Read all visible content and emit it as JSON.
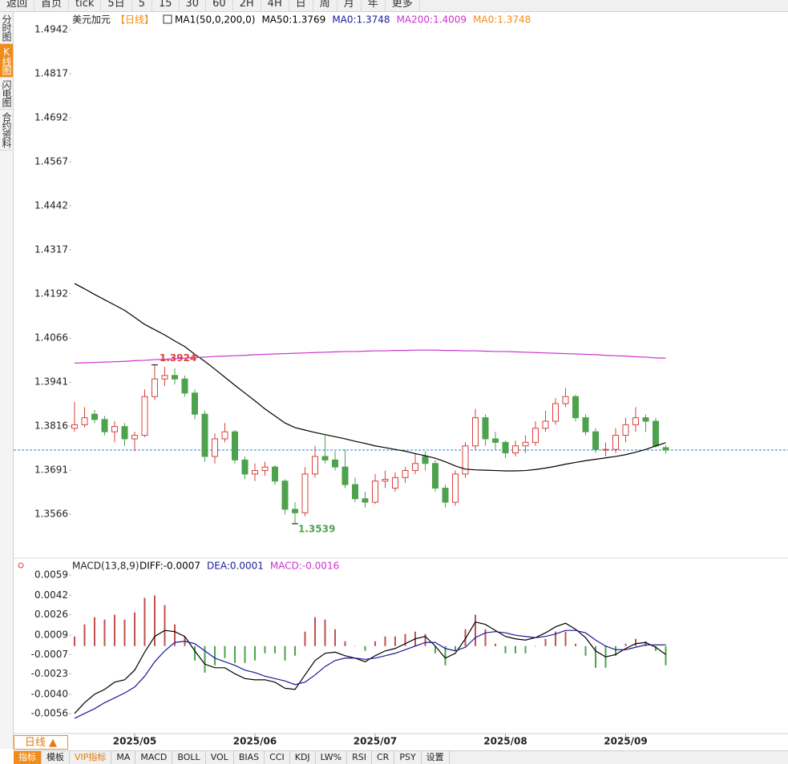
{
  "toolbar": [
    "返回",
    "首页",
    "tick",
    "5日",
    "5",
    "15",
    "30",
    "60",
    "2H",
    "4H",
    "日",
    "周",
    "月",
    "年",
    "更多"
  ],
  "sidebar": [
    "分时图",
    "K线图",
    "闪电图",
    "合约资料"
  ],
  "chart_data": {
    "type": "candlestick",
    "title": "美元加元",
    "period": "【日线】",
    "legend": [
      {
        "text": "MA1(50,0,200,0)",
        "color": "#000000"
      },
      {
        "text": "MA50:1.3769",
        "color": "#000000"
      },
      {
        "text": "MA0:1.3748",
        "color": "#1a1a9a"
      },
      {
        "text": "MA200:1.4009",
        "color": "#cc33cc"
      },
      {
        "text": "MA0:1.3748",
        "color": "#f08c1a"
      }
    ],
    "up_color": "#d9413c",
    "down_color": "#4ea24e",
    "categories": [
      null,
      null,
      null,
      null,
      null,
      null,
      "2025/05",
      null,
      null,
      null,
      null,
      null,
      null,
      null,
      null,
      null,
      null,
      null,
      "2025/06",
      null,
      null,
      null,
      null,
      null,
      null,
      null,
      null,
      null,
      null,
      null,
      "2025/07",
      null,
      null,
      null,
      null,
      null,
      null,
      null,
      null,
      null,
      null,
      null,
      null,
      "2025/08",
      null,
      null,
      null,
      null,
      null,
      null,
      null,
      null,
      null,
      null,
      null,
      "2025/09",
      null,
      null,
      null,
      null
    ],
    "ohlc": [
      [
        1.381,
        1.3885,
        1.38,
        1.382
      ],
      [
        1.382,
        1.387,
        1.3812,
        1.384
      ],
      [
        1.385,
        1.3862,
        1.3825,
        1.3835
      ],
      [
        1.3835,
        1.3845,
        1.379,
        1.38
      ],
      [
        1.38,
        1.383,
        1.377,
        1.3815
      ],
      [
        1.3815,
        1.3825,
        1.376,
        1.378
      ],
      [
        1.378,
        1.38,
        1.3745,
        1.379
      ],
      [
        1.379,
        1.392,
        1.3785,
        1.39
      ],
      [
        1.39,
        1.399,
        1.389,
        1.395
      ],
      [
        1.395,
        1.3985,
        1.393,
        1.396
      ],
      [
        1.396,
        1.398,
        1.3935,
        1.395
      ],
      [
        1.395,
        1.396,
        1.39,
        1.391
      ],
      [
        1.391,
        1.392,
        1.3835,
        1.385
      ],
      [
        1.385,
        1.386,
        1.3715,
        1.373
      ],
      [
        1.373,
        1.3795,
        1.371,
        1.378
      ],
      [
        1.378,
        1.3825,
        1.377,
        1.38
      ],
      [
        1.38,
        1.3805,
        1.371,
        1.372
      ],
      [
        1.372,
        1.373,
        1.3665,
        1.368
      ],
      [
        1.368,
        1.371,
        1.366,
        1.369
      ],
      [
        1.369,
        1.3715,
        1.3675,
        1.37
      ],
      [
        1.37,
        1.3705,
        1.365,
        1.366
      ],
      [
        1.366,
        1.3665,
        1.3565,
        1.358
      ],
      [
        1.358,
        1.36,
        1.3539,
        1.357
      ],
      [
        1.357,
        1.37,
        1.356,
        1.368
      ],
      [
        1.368,
        1.376,
        1.367,
        1.373
      ],
      [
        1.373,
        1.379,
        1.371,
        1.372
      ],
      [
        1.372,
        1.3745,
        1.369,
        1.37
      ],
      [
        1.37,
        1.375,
        1.364,
        1.365
      ],
      [
        1.365,
        1.367,
        1.36,
        1.361
      ],
      [
        1.361,
        1.363,
        1.3585,
        1.36
      ],
      [
        1.36,
        1.368,
        1.3595,
        1.366
      ],
      [
        1.366,
        1.369,
        1.364,
        1.3665
      ],
      [
        1.364,
        1.3685,
        1.363,
        1.367
      ],
      [
        1.367,
        1.37,
        1.3655,
        1.369
      ],
      [
        1.369,
        1.374,
        1.368,
        1.371
      ],
      [
        1.373,
        1.3745,
        1.369,
        1.371
      ],
      [
        1.371,
        1.372,
        1.363,
        1.364
      ],
      [
        1.364,
        1.365,
        1.3585,
        1.36
      ],
      [
        1.36,
        1.369,
        1.359,
        1.368
      ],
      [
        1.368,
        1.377,
        1.367,
        1.376
      ],
      [
        1.376,
        1.3865,
        1.375,
        1.384
      ],
      [
        1.384,
        1.385,
        1.376,
        1.378
      ],
      [
        1.378,
        1.38,
        1.375,
        1.377
      ],
      [
        1.377,
        1.3775,
        1.3725,
        1.374
      ],
      [
        1.374,
        1.3775,
        1.373,
        1.376
      ],
      [
        1.376,
        1.379,
        1.374,
        1.377
      ],
      [
        1.377,
        1.383,
        1.376,
        1.381
      ],
      [
        1.381,
        1.386,
        1.38,
        1.383
      ],
      [
        1.383,
        1.3895,
        1.382,
        1.388
      ],
      [
        1.388,
        1.3924,
        1.387,
        1.39
      ],
      [
        1.39,
        1.3905,
        1.383,
        1.384
      ],
      [
        1.384,
        1.385,
        1.379,
        1.38
      ],
      [
        1.38,
        1.381,
        1.374,
        1.375
      ],
      [
        1.375,
        1.377,
        1.373,
        1.375
      ],
      [
        1.375,
        1.381,
        1.374,
        1.379
      ],
      [
        1.379,
        1.384,
        1.377,
        1.382
      ],
      [
        1.382,
        1.387,
        1.38,
        1.384
      ],
      [
        1.384,
        1.385,
        1.38,
        1.383
      ],
      [
        1.383,
        1.384,
        1.3755,
        1.376
      ],
      [
        1.3755,
        1.3762,
        1.3738,
        1.3748
      ]
    ],
    "series": [
      {
        "name": "MA50",
        "color": "#000000",
        "values": [
          1.4221,
          1.4206,
          1.419,
          1.4175,
          1.416,
          1.4145,
          1.4125,
          1.4105,
          1.409,
          1.4075,
          1.4058,
          1.4042,
          1.402,
          1.4,
          1.3978,
          1.3955,
          1.3932,
          1.391,
          1.3888,
          1.3865,
          1.3845,
          1.3825,
          1.3812,
          1.3805,
          1.3798,
          1.3792,
          1.3786,
          1.378,
          1.3773,
          1.3767,
          1.376,
          1.3755,
          1.375,
          1.3745,
          1.3738,
          1.3732,
          1.3725,
          1.3715,
          1.3703,
          1.3694,
          1.3692,
          1.3691,
          1.369,
          1.3689,
          1.3689,
          1.369,
          1.3693,
          1.3697,
          1.3702,
          1.3708,
          1.3713,
          1.3718,
          1.3722,
          1.3726,
          1.373,
          1.3735,
          1.3742,
          1.375,
          1.376,
          1.3769
        ]
      },
      {
        "name": "MA200",
        "color": "#cc33cc",
        "values": [
          1.3995,
          1.3996,
          1.3997,
          1.3998,
          1.3999,
          1.4,
          1.4002,
          1.4003,
          1.4005,
          1.4006,
          1.4008,
          1.4009,
          1.4011,
          1.4012,
          1.4014,
          1.4015,
          1.4016,
          1.4017,
          1.4019,
          1.402,
          1.4021,
          1.4022,
          1.4023,
          1.4024,
          1.4025,
          1.4026,
          1.4027,
          1.4028,
          1.4028,
          1.4029,
          1.403,
          1.403,
          1.4031,
          1.4031,
          1.4032,
          1.4032,
          1.4032,
          1.4031,
          1.4031,
          1.403,
          1.403,
          1.4029,
          1.4028,
          1.4028,
          1.4027,
          1.4026,
          1.4025,
          1.4024,
          1.4023,
          1.4022,
          1.4021,
          1.402,
          1.4019,
          1.4017,
          1.4016,
          1.4015,
          1.4013,
          1.4012,
          1.401,
          1.4009
        ]
      }
    ],
    "last_price": 1.3748,
    "last_price_color": "#2a7fc9",
    "annotations": [
      "1.3924",
      "1.3539"
    ],
    "ylim": [
      1.3457,
      1.4958
    ],
    "yticks": [
      1.4942,
      1.4817,
      1.4692,
      1.4567,
      1.4442,
      1.4317,
      1.4192,
      1.4066,
      1.3941,
      1.3816,
      1.3691,
      1.3566
    ],
    "macd": {
      "title": "MACD(13,8,9)",
      "legend": [
        {
          "text": "DIFF:-0.0007",
          "color": "#000000"
        },
        {
          "text": "DEA:0.0001",
          "color": "#1a1a9a"
        },
        {
          "text": "MACD:-0.0016",
          "color": "#cc33cc"
        }
      ],
      "series": [
        {
          "name": "DIFF",
          "color": "#000000",
          "values": [
            -0.0056,
            -0.0047,
            -0.004,
            -0.0036,
            -0.003,
            -0.0028,
            -0.002,
            -0.0005,
            0.0008,
            0.0013,
            0.0012,
            0.0008,
            -0.0004,
            -0.0015,
            -0.0018,
            -0.0018,
            -0.0023,
            -0.0027,
            -0.0028,
            -0.0028,
            -0.003,
            -0.0035,
            -0.0036,
            -0.0024,
            -0.0012,
            -0.0006,
            -0.0005,
            -0.0008,
            -0.001,
            -0.0013,
            -0.0008,
            -0.0004,
            -0.0002,
            0.0002,
            0.0006,
            0.0008,
            0,
            -0.001,
            -0.0006,
            0.0006,
            0.002,
            0.0018,
            0.0013,
            0.0008,
            0.0006,
            0.0005,
            0.0007,
            0.0011,
            0.0016,
            0.0019,
            0.0014,
            0.0007,
            -0.0004,
            -0.0009,
            -0.0007,
            -0.0002,
            0.0002,
            0.0003,
            -0.0001,
            -0.0007
          ]
        },
        {
          "name": "DEA",
          "color": "#1a1a9a",
          "values": [
            -0.006,
            -0.0056,
            -0.0052,
            -0.0047,
            -0.0043,
            -0.0039,
            -0.0034,
            -0.0025,
            -0.0013,
            -0.0004,
            0.0003,
            0.0004,
            0.0002,
            -0.0004,
            -0.001,
            -0.0013,
            -0.0016,
            -0.002,
            -0.0022,
            -0.0025,
            -0.0027,
            -0.0029,
            -0.0032,
            -0.003,
            -0.0024,
            -0.0017,
            -0.0012,
            -0.001,
            -0.001,
            -0.0011,
            -0.001,
            -0.0008,
            -0.0006,
            -0.0003,
            0,
            0.0003,
            0.0003,
            -0.0002,
            -0.0004,
            -0.0001,
            0.0007,
            0.0011,
            0.0012,
            0.0011,
            0.0009,
            0.0008,
            0.0007,
            0.0008,
            0.001,
            0.0013,
            0.0013,
            0.0011,
            0.0005,
            0,
            -0.0003,
            -0.0003,
            -0.0001,
            0.0001,
            0.0001,
            0.0001
          ]
        }
      ],
      "histogram": {
        "name": "MACD",
        "up_color": "#c0504d",
        "down_color": "#4ea24e",
        "values": [
          0.0008,
          0.0018,
          0.0024,
          0.0022,
          0.0026,
          0.0022,
          0.0028,
          0.004,
          0.0042,
          0.0034,
          0.0018,
          0.0008,
          -0.0012,
          -0.0022,
          -0.0016,
          -0.001,
          -0.0014,
          -0.0014,
          -0.0012,
          -0.0006,
          -0.0006,
          -0.0012,
          -0.0008,
          0.0012,
          0.0024,
          0.0022,
          0.0014,
          0.0004,
          0,
          -0.0004,
          0.0004,
          0.0008,
          0.0008,
          0.001,
          0.0012,
          0.001,
          -0.0006,
          -0.0016,
          -0.0004,
          0.0014,
          0.0026,
          0.0014,
          0.0002,
          -0.0006,
          -0.0006,
          -0.0006,
          0,
          0.0006,
          0.0012,
          0.0012,
          0.0002,
          -0.0008,
          -0.0018,
          -0.0018,
          -0.0008,
          0.0002,
          0.0006,
          0.0004,
          -0.0004,
          -0.0016
        ]
      },
      "ylim": [
        -0.0072,
        0.0071
      ],
      "yticks": [
        0.0059,
        0.0042,
        0.0026,
        0.0009,
        -0.0007,
        -0.0023,
        {
          "value": -0.004,
          "label": "-0.0040"
        },
        -0.0056
      ]
    }
  },
  "bottom_bar": {
    "period": "日线 ▲",
    "tabs": [
      "指标",
      "模板",
      "VIP指标",
      "MA",
      "MACD",
      "BOLL",
      "VOL",
      "BIAS",
      "CCI",
      "KDJ",
      "LW%",
      "RSI",
      "CR",
      "PSY",
      "设置"
    ]
  }
}
